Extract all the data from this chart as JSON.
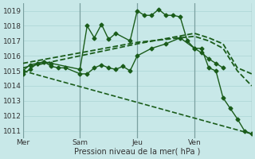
{
  "bg_color": "#c8e8e8",
  "grid_color": "#ddf0f0",
  "line_color": "#1a5c1a",
  "marker_color": "#1a5c1a",
  "xlabel": "Pression niveau de la mer( hPa )",
  "ylim": [
    1010.5,
    1019.5
  ],
  "yticks": [
    1011,
    1012,
    1013,
    1014,
    1015,
    1016,
    1017,
    1018,
    1019
  ],
  "xlim": [
    0,
    16
  ],
  "xgrid_every": 1,
  "vline_day_positions": [
    0,
    4,
    8,
    12,
    16
  ],
  "vline_day_labels": [
    "Mer",
    "Sam",
    "Jeu",
    "Ven",
    ""
  ],
  "series": [
    {
      "x": [
        0,
        0.5,
        1.0,
        1.5,
        2.0,
        4.0,
        4.5,
        5.0,
        5.5,
        6.0,
        6.5,
        7.5,
        8.0,
        8.5,
        9.0,
        9.5,
        10.0,
        10.5,
        11.0,
        11.5,
        12.0,
        12.5,
        13.0,
        13.5,
        14.0,
        14.5,
        15.0,
        15.5,
        16.0
      ],
      "y": [
        1014.8,
        1015.1,
        1015.5,
        1015.6,
        1015.5,
        1015.1,
        1018.0,
        1017.2,
        1018.1,
        1017.1,
        1017.5,
        1017.0,
        1019.0,
        1018.7,
        1018.7,
        1019.1,
        1018.7,
        1018.7,
        1018.6,
        1017.0,
        1016.5,
        1016.5,
        1015.2,
        1015.0,
        1013.2,
        1012.5,
        1011.8,
        1011.0,
        1010.8
      ],
      "marker": "D",
      "markersize": 2.5,
      "linewidth": 1.0,
      "linestyle": "-"
    },
    {
      "x": [
        0,
        0.5,
        1.0,
        1.5,
        2.0,
        2.5,
        3.0,
        4.0,
        4.5,
        5.0,
        5.5,
        6.0,
        6.5,
        7.0,
        7.5,
        8.0,
        9.0,
        10.0,
        11.0,
        12.0,
        12.5,
        13.0,
        13.5,
        14.0
      ],
      "y": [
        1015.0,
        1015.4,
        1015.5,
        1015.6,
        1015.3,
        1015.2,
        1015.2,
        1014.8,
        1014.8,
        1015.2,
        1015.4,
        1015.2,
        1015.1,
        1015.3,
        1015.0,
        1016.0,
        1016.5,
        1016.8,
        1017.2,
        1016.5,
        1016.2,
        1015.8,
        1015.5,
        1015.2
      ],
      "marker": "D",
      "markersize": 2.5,
      "linewidth": 1.0,
      "linestyle": "-"
    },
    {
      "x": [
        0,
        16
      ],
      "y": [
        1015.0,
        1010.8
      ],
      "marker": null,
      "markersize": 0,
      "linewidth": 1.2,
      "linestyle": "--"
    },
    {
      "x": [
        0,
        4,
        8,
        12,
        13,
        14,
        15,
        16
      ],
      "y": [
        1015.2,
        1016.0,
        1016.8,
        1017.5,
        1017.2,
        1016.8,
        1015.2,
        1014.8
      ],
      "marker": null,
      "markersize": 0,
      "linewidth": 1.3,
      "linestyle": "--"
    },
    {
      "x": [
        0,
        4,
        8,
        10,
        12,
        13,
        14,
        15,
        16
      ],
      "y": [
        1015.5,
        1016.2,
        1016.9,
        1017.1,
        1017.3,
        1017.0,
        1016.5,
        1015.0,
        1014.0
      ],
      "marker": null,
      "markersize": 0,
      "linewidth": 1.3,
      "linestyle": "--"
    }
  ]
}
